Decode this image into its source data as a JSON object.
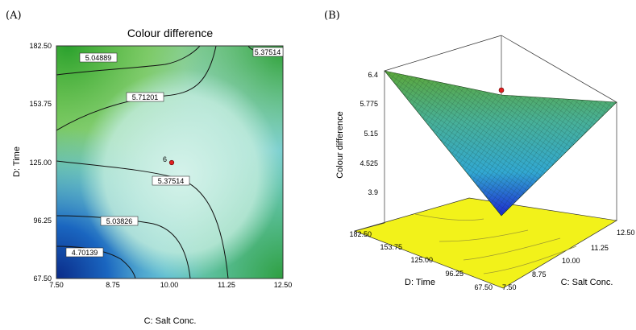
{
  "panels": [
    {
      "label": "(A)",
      "chart_data": {
        "type": "heatmap",
        "subtype": "contour",
        "title": "Colour difference",
        "xlabel": "C: Salt Conc.",
        "ylabel": "D: Time",
        "xticks": [
          "7.50",
          "8.75",
          "10.00",
          "11.25",
          "12.50"
        ],
        "yticks": [
          "67.50",
          "96.25",
          "125.00",
          "153.75",
          "182.50"
        ],
        "xlim": [
          7.5,
          12.5
        ],
        "ylim": [
          67.5,
          182.5
        ],
        "contour_labels": [
          "5.04889",
          "5.71201",
          "5.37514",
          "5.03826",
          "4.70139",
          "5.37514"
        ],
        "center_point": {
          "x": 10.0,
          "y": 125.0,
          "label": "6"
        },
        "colors": {
          "low": "#0c2f8c",
          "mid": "#c9f1ee",
          "high": "#3cb83a"
        }
      }
    },
    {
      "label": "(B)",
      "chart_data": {
        "type": "surface3d",
        "zlabel": "Colour difference",
        "xlabel": "C: Salt Conc.",
        "ylabel": "D: Time",
        "zticks": [
          "3.9",
          "4.525",
          "5.15",
          "5.775",
          "6.4"
        ],
        "xticks": [
          "7.50",
          "8.75",
          "10.00",
          "11.25",
          "12.50"
        ],
        "yticks": [
          "67.50",
          "96.25",
          "125.00",
          "153.75",
          "182.50"
        ],
        "zlim": [
          3.9,
          6.4
        ],
        "colors": {
          "low": "#1e2ad0",
          "mid": "#30b8c8",
          "high": "#5aa63a",
          "floor": "#f2f21a"
        }
      }
    }
  ]
}
